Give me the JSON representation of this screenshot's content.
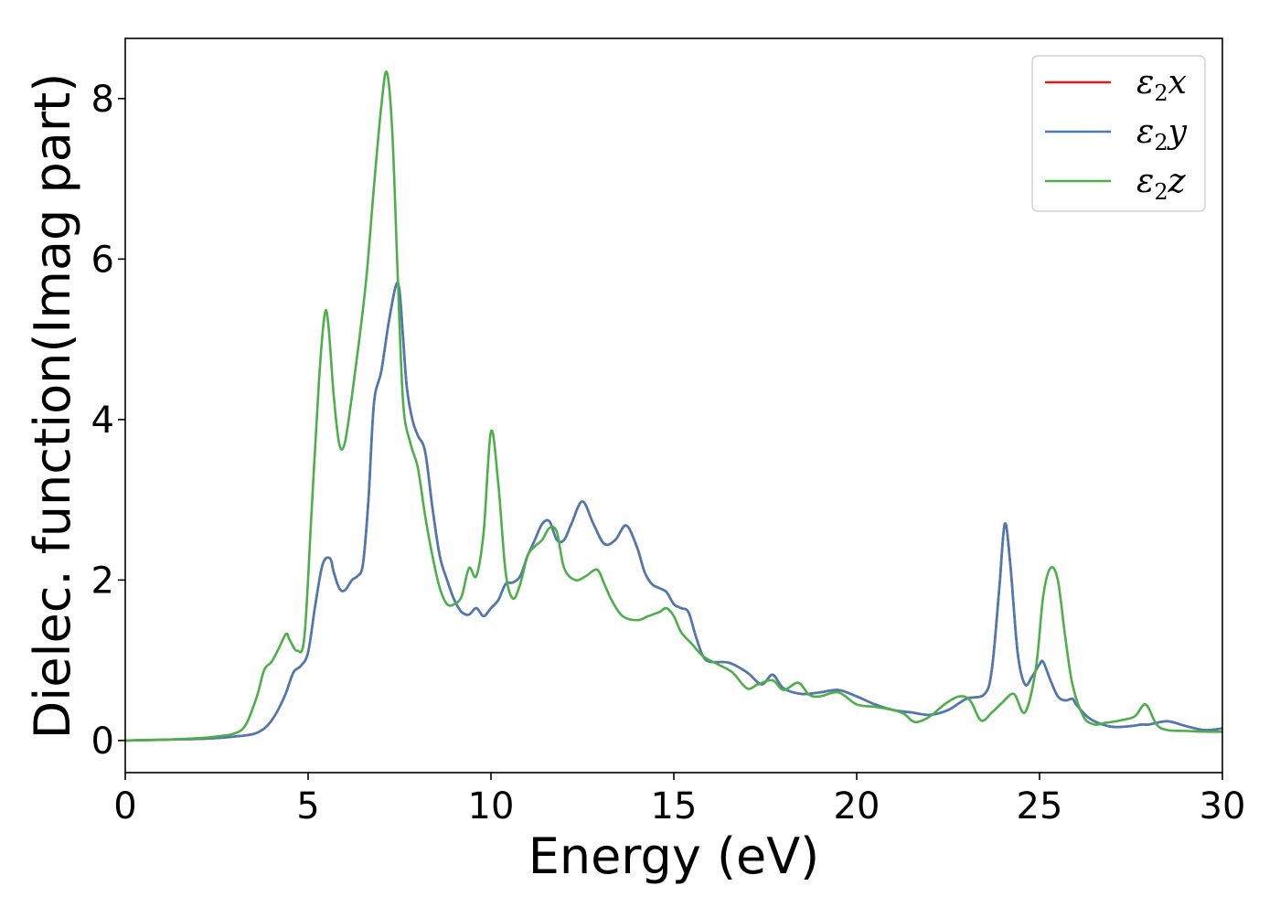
{
  "chart_data": {
    "type": "line",
    "title": "",
    "xlabel": "Energy (eV)",
    "ylabel": "Dielec. function(Imag part)",
    "xlim": [
      0,
      30
    ],
    "ylim": [
      -0.4,
      8.75
    ],
    "xticks": [
      0,
      5,
      10,
      15,
      20,
      25,
      30
    ],
    "yticks": [
      0,
      2,
      4,
      6,
      8
    ],
    "grid": false,
    "legend_position": "top-right",
    "series": [
      {
        "name": "ε2x",
        "legend_base": "ε",
        "legend_sub": "2",
        "legend_var": "x",
        "color": "#e41a1c",
        "x": [
          0,
          1,
          2,
          2.5,
          3,
          3.5,
          3.8,
          4.0,
          4.2,
          4.4,
          4.6,
          4.8,
          5.0,
          5.2,
          5.4,
          5.6,
          5.7,
          5.85,
          6.0,
          6.2,
          6.35,
          6.5,
          6.65,
          6.8,
          7.0,
          7.2,
          7.4,
          7.5,
          7.6,
          7.7,
          7.85,
          8.0,
          8.2,
          8.4,
          8.6,
          8.8,
          9.0,
          9.2,
          9.4,
          9.6,
          9.8,
          10.0,
          10.2,
          10.4,
          10.6,
          10.8,
          11.0,
          11.2,
          11.4,
          11.6,
          11.8,
          12.0,
          12.2,
          12.5,
          12.8,
          13.1,
          13.4,
          13.7,
          14.0,
          14.2,
          14.4,
          14.6,
          14.8,
          15.0,
          15.2,
          15.4,
          15.6,
          15.8,
          16.0,
          16.5,
          17.0,
          17.4,
          17.7,
          18.0,
          18.5,
          19.0,
          19.5,
          20.0,
          20.5,
          21.0,
          21.5,
          22.0,
          22.5,
          23.0,
          23.5,
          23.7,
          23.9,
          24.05,
          24.2,
          24.4,
          24.6,
          24.8,
          25.0,
          25.1,
          25.3,
          25.5,
          25.7,
          25.9,
          26.0,
          26.3,
          26.6,
          27.0,
          27.5,
          27.8,
          28.0,
          28.5,
          29.0,
          29.5,
          30.0
        ],
        "values": [
          0.0,
          0.01,
          0.02,
          0.03,
          0.05,
          0.08,
          0.15,
          0.25,
          0.4,
          0.6,
          0.85,
          0.93,
          1.1,
          1.7,
          2.2,
          2.27,
          2.1,
          1.9,
          1.87,
          2.0,
          2.05,
          2.2,
          3.0,
          4.2,
          4.6,
          5.2,
          5.67,
          5.6,
          5.0,
          4.4,
          4.0,
          3.8,
          3.6,
          2.9,
          2.3,
          2.0,
          1.75,
          1.6,
          1.57,
          1.65,
          1.55,
          1.65,
          1.75,
          1.95,
          1.97,
          2.05,
          2.3,
          2.5,
          2.7,
          2.73,
          2.5,
          2.5,
          2.7,
          2.98,
          2.7,
          2.45,
          2.5,
          2.68,
          2.4,
          2.1,
          1.95,
          1.9,
          1.85,
          1.7,
          1.65,
          1.6,
          1.3,
          1.05,
          0.98,
          0.97,
          0.85,
          0.7,
          0.82,
          0.65,
          0.58,
          0.6,
          0.63,
          0.55,
          0.45,
          0.38,
          0.35,
          0.32,
          0.38,
          0.52,
          0.58,
          0.9,
          1.9,
          2.7,
          2.2,
          1.1,
          0.7,
          0.8,
          0.95,
          0.98,
          0.75,
          0.55,
          0.5,
          0.52,
          0.45,
          0.3,
          0.22,
          0.17,
          0.18,
          0.2,
          0.2,
          0.24,
          0.18,
          0.13,
          0.15
        ]
      },
      {
        "name": "ε2y",
        "legend_base": "ε",
        "legend_sub": "2",
        "legend_var": "y",
        "color": "#4a7ab5",
        "x": [
          0,
          1,
          2,
          2.5,
          3,
          3.5,
          3.8,
          4.0,
          4.2,
          4.4,
          4.6,
          4.8,
          5.0,
          5.2,
          5.4,
          5.6,
          5.7,
          5.85,
          6.0,
          6.2,
          6.35,
          6.5,
          6.65,
          6.8,
          7.0,
          7.2,
          7.4,
          7.5,
          7.6,
          7.7,
          7.85,
          8.0,
          8.2,
          8.4,
          8.6,
          8.8,
          9.0,
          9.2,
          9.4,
          9.6,
          9.8,
          10.0,
          10.2,
          10.4,
          10.6,
          10.8,
          11.0,
          11.2,
          11.4,
          11.6,
          11.8,
          12.0,
          12.2,
          12.5,
          12.8,
          13.1,
          13.4,
          13.7,
          14.0,
          14.2,
          14.4,
          14.6,
          14.8,
          15.0,
          15.2,
          15.4,
          15.6,
          15.8,
          16.0,
          16.5,
          17.0,
          17.4,
          17.7,
          18.0,
          18.5,
          19.0,
          19.5,
          20.0,
          20.5,
          21.0,
          21.5,
          22.0,
          22.5,
          23.0,
          23.5,
          23.7,
          23.9,
          24.05,
          24.2,
          24.4,
          24.6,
          24.8,
          25.0,
          25.1,
          25.3,
          25.5,
          25.7,
          25.9,
          26.0,
          26.3,
          26.6,
          27.0,
          27.5,
          27.8,
          28.0,
          28.5,
          29.0,
          29.5,
          30.0
        ],
        "values": [
          0.0,
          0.01,
          0.02,
          0.03,
          0.05,
          0.08,
          0.15,
          0.25,
          0.4,
          0.6,
          0.85,
          0.93,
          1.1,
          1.7,
          2.2,
          2.27,
          2.1,
          1.9,
          1.87,
          2.0,
          2.05,
          2.2,
          3.0,
          4.2,
          4.6,
          5.2,
          5.67,
          5.6,
          5.0,
          4.4,
          4.0,
          3.8,
          3.6,
          2.9,
          2.3,
          2.0,
          1.75,
          1.6,
          1.57,
          1.65,
          1.55,
          1.65,
          1.75,
          1.95,
          1.97,
          2.05,
          2.3,
          2.5,
          2.7,
          2.73,
          2.5,
          2.5,
          2.7,
          2.98,
          2.7,
          2.45,
          2.5,
          2.68,
          2.4,
          2.1,
          1.95,
          1.9,
          1.85,
          1.7,
          1.65,
          1.6,
          1.3,
          1.05,
          0.98,
          0.97,
          0.85,
          0.7,
          0.82,
          0.65,
          0.58,
          0.6,
          0.63,
          0.55,
          0.45,
          0.38,
          0.35,
          0.32,
          0.38,
          0.52,
          0.58,
          0.9,
          1.9,
          2.7,
          2.2,
          1.1,
          0.7,
          0.8,
          0.95,
          0.98,
          0.75,
          0.55,
          0.5,
          0.52,
          0.45,
          0.3,
          0.22,
          0.17,
          0.18,
          0.2,
          0.2,
          0.24,
          0.18,
          0.13,
          0.15
        ]
      },
      {
        "name": "ε2z",
        "legend_base": "ε",
        "legend_sub": "2",
        "legend_var": "z",
        "color": "#4daf4a",
        "x": [
          0,
          1,
          2,
          2.5,
          3,
          3.3,
          3.6,
          3.8,
          4.0,
          4.2,
          4.4,
          4.5,
          4.7,
          4.9,
          5.1,
          5.3,
          5.45,
          5.55,
          5.7,
          5.85,
          6.0,
          6.2,
          6.4,
          6.6,
          6.8,
          7.0,
          7.15,
          7.3,
          7.45,
          7.6,
          7.8,
          8.0,
          8.2,
          8.4,
          8.6,
          8.8,
          9.0,
          9.2,
          9.4,
          9.6,
          9.8,
          10.0,
          10.2,
          10.4,
          10.6,
          10.8,
          11.0,
          11.2,
          11.4,
          11.6,
          11.8,
          12.0,
          12.3,
          12.6,
          12.9,
          13.1,
          13.3,
          13.6,
          14.0,
          14.3,
          14.6,
          14.8,
          15.0,
          15.2,
          15.5,
          15.8,
          16.2,
          16.6,
          17.0,
          17.3,
          17.7,
          18.0,
          18.4,
          18.7,
          19.0,
          19.5,
          20.0,
          20.5,
          21.0,
          21.3,
          21.6,
          22.0,
          22.4,
          22.8,
          23.1,
          23.4,
          23.7,
          24.0,
          24.3,
          24.6,
          24.9,
          25.1,
          25.3,
          25.5,
          25.7,
          25.9,
          26.2,
          26.5,
          26.8,
          27.2,
          27.6,
          27.9,
          28.2,
          28.5,
          29.0,
          29.5,
          30.0
        ],
        "values": [
          0.0,
          0.01,
          0.03,
          0.05,
          0.09,
          0.2,
          0.55,
          0.88,
          0.98,
          1.15,
          1.33,
          1.25,
          1.12,
          1.3,
          2.9,
          4.5,
          5.3,
          5.2,
          4.3,
          3.7,
          3.7,
          4.3,
          5.0,
          5.8,
          6.9,
          7.9,
          8.33,
          7.6,
          5.8,
          4.2,
          3.7,
          3.4,
          2.8,
          2.3,
          1.9,
          1.7,
          1.7,
          1.8,
          2.15,
          2.05,
          2.6,
          3.85,
          3.2,
          2.1,
          1.77,
          1.95,
          2.3,
          2.42,
          2.5,
          2.65,
          2.6,
          2.15,
          2.0,
          2.05,
          2.13,
          1.95,
          1.75,
          1.55,
          1.5,
          1.55,
          1.6,
          1.65,
          1.55,
          1.35,
          1.2,
          1.05,
          0.95,
          0.85,
          0.65,
          0.7,
          0.75,
          0.63,
          0.72,
          0.57,
          0.55,
          0.6,
          0.45,
          0.42,
          0.38,
          0.33,
          0.23,
          0.3,
          0.45,
          0.55,
          0.5,
          0.25,
          0.35,
          0.48,
          0.58,
          0.35,
          0.9,
          1.8,
          2.15,
          2.0,
          1.3,
          0.7,
          0.3,
          0.2,
          0.22,
          0.25,
          0.3,
          0.45,
          0.2,
          0.13,
          0.12,
          0.11,
          0.11
        ]
      }
    ]
  }
}
